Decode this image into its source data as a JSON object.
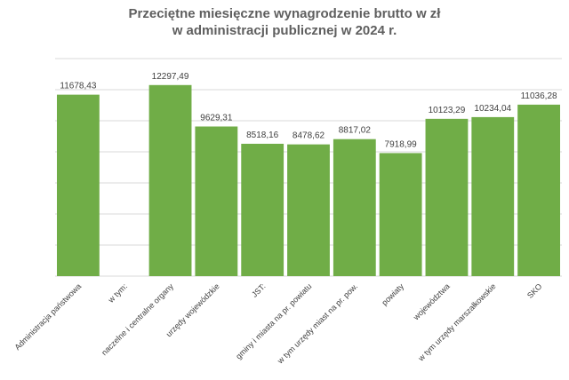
{
  "chart_data": {
    "type": "bar",
    "title_lines": [
      "Przeciętne miesięczne wynagrodzenie brutto w zł",
      "w administracji publicznej w 2024 r."
    ],
    "categories": [
      "Administracja państwowa",
      "w tym:",
      "naczelne i centralne organy",
      "urzędy wojewódzkie",
      "JST:",
      "gminy i miasta na pr. powiatu",
      "w tym urzędy miast na pr. pow.",
      "powiaty",
      "województwa",
      "w tym urzędy marszałkowskie",
      "SKO"
    ],
    "values": [
      11678.43,
      null,
      12297.49,
      9629.31,
      8518.16,
      8478.62,
      8817.02,
      7918.99,
      10123.29,
      10234.04,
      11036.28
    ],
    "value_labels": [
      "11678,43",
      "",
      "12297,49",
      "9629,31",
      "8518,16",
      "8478,62",
      "8817,02",
      "7918,99",
      "10123,29",
      "10234,04",
      "11036,28"
    ],
    "ylim": [
      0,
      14000
    ],
    "grid": true,
    "bar_color": "#70ad47",
    "grid_color": "#d9d9d9",
    "legend": "none"
  }
}
